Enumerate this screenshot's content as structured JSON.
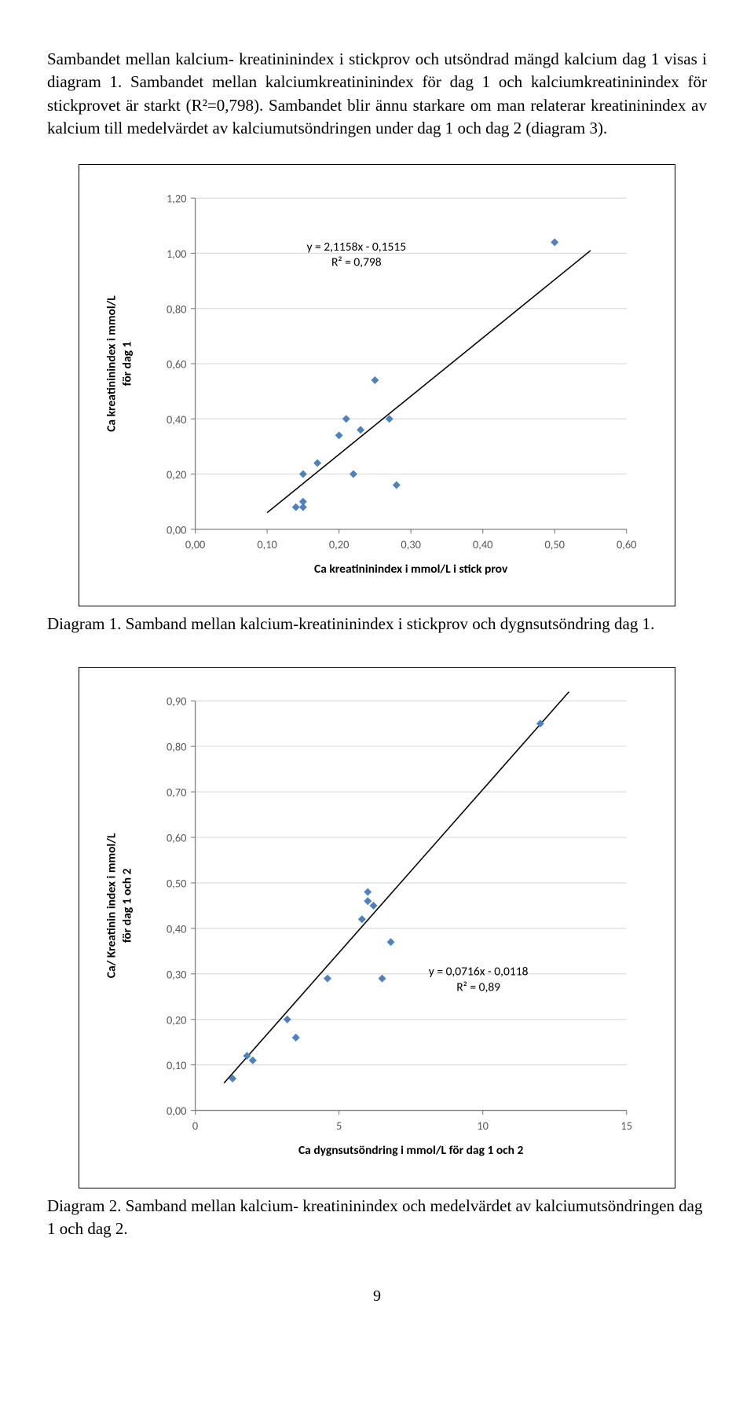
{
  "paragraph1": "Sambandet mellan kalcium- kreatininindex i stickprov och utsöndrad mängd kalcium dag 1 visas i diagram 1. Sambandet mellan kalciumkreatininindex för dag 1 och kalciumkreatininindex för stickprovet är starkt (R²=0,798). Sambandet blir ännu starkare om man relaterar kreatininindex av kalcium till medelvärdet av kalciumutsöndringen under dag 1 och dag 2 (diagram 3).",
  "caption1": "Diagram 1. Samband mellan kalcium-kreatininindex i stickprov och dygnsutsöndring dag 1.",
  "caption2": "Diagram 2. Samband mellan kalcium- kreatininindex och medelvärdet av kalciumutsöndringen dag 1 och dag 2.",
  "page_number": "9",
  "chart1": {
    "type": "scatter",
    "equation_line1": "y = 2,1158x - 0,1515",
    "equation_line2": "R² = 0,798",
    "xlabel": "Ca kreatininindex i mmol/L i stick prov",
    "ylabel": "Ca kreatininindex i mmol/L för dag 1",
    "xlim": [
      0.0,
      0.6
    ],
    "ylim": [
      0.0,
      1.2
    ],
    "xticks": [
      "0,00",
      "0,10",
      "0,20",
      "0,30",
      "0,40",
      "0,50",
      "0,60"
    ],
    "yticks": [
      "0,00",
      "0,20",
      "0,40",
      "0,60",
      "0,80",
      "1,00",
      "1,20"
    ],
    "marker_color": "#4f81bd",
    "marker_shape": "diamond",
    "marker_size": 9,
    "line_color": "#000000",
    "line_width": 1.4,
    "background_color": "#ffffff",
    "grid_color": "#d9d9d9",
    "axis_fontsize": 13,
    "label_fontsize": 14,
    "equation_fontsize": 14,
    "points": [
      [
        0.14,
        0.08
      ],
      [
        0.15,
        0.1
      ],
      [
        0.15,
        0.2
      ],
      [
        0.15,
        0.08
      ],
      [
        0.17,
        0.24
      ],
      [
        0.2,
        0.34
      ],
      [
        0.21,
        0.4
      ],
      [
        0.22,
        0.2
      ],
      [
        0.23,
        0.36
      ],
      [
        0.25,
        0.54
      ],
      [
        0.27,
        0.4
      ],
      [
        0.28,
        0.16
      ],
      [
        0.5,
        1.04
      ]
    ],
    "trend_line": {
      "x1": 0.1,
      "y1": 0.06,
      "x2": 0.55,
      "y2": 1.01
    }
  },
  "chart2": {
    "type": "scatter",
    "equation_line1": "y = 0,0716x - 0,0118",
    "equation_line2": "R² = 0,89",
    "xlabel": "Ca dygnsutsöndring i mmol/L för dag 1 och 2",
    "ylabel": "Ca/ Kreatinin index i mmol/L för dag 1 och 2",
    "xlim": [
      0,
      15
    ],
    "ylim": [
      0.0,
      0.9
    ],
    "xticks": [
      "0",
      "5",
      "10",
      "15"
    ],
    "yticks": [
      "0,00",
      "0,10",
      "0,20",
      "0,30",
      "0,40",
      "0,50",
      "0,60",
      "0,70",
      "0,80",
      "0,90"
    ],
    "marker_color": "#4f81bd",
    "marker_shape": "diamond",
    "marker_size": 9,
    "line_color": "#000000",
    "line_width": 1.4,
    "background_color": "#ffffff",
    "grid_color": "#d9d9d9",
    "axis_fontsize": 13,
    "label_fontsize": 14,
    "equation_fontsize": 14,
    "points": [
      [
        1.3,
        0.07
      ],
      [
        1.8,
        0.12
      ],
      [
        2.0,
        0.11
      ],
      [
        3.2,
        0.2
      ],
      [
        3.5,
        0.16
      ],
      [
        4.6,
        0.29
      ],
      [
        5.8,
        0.42
      ],
      [
        6.0,
        0.46
      ],
      [
        6.0,
        0.48
      ],
      [
        6.2,
        0.45
      ],
      [
        6.5,
        0.29
      ],
      [
        6.8,
        0.37
      ],
      [
        12.0,
        0.85
      ]
    ],
    "trend_line": {
      "x1": 1.0,
      "y1": 0.06,
      "x2": 13.0,
      "y2": 0.92
    }
  }
}
